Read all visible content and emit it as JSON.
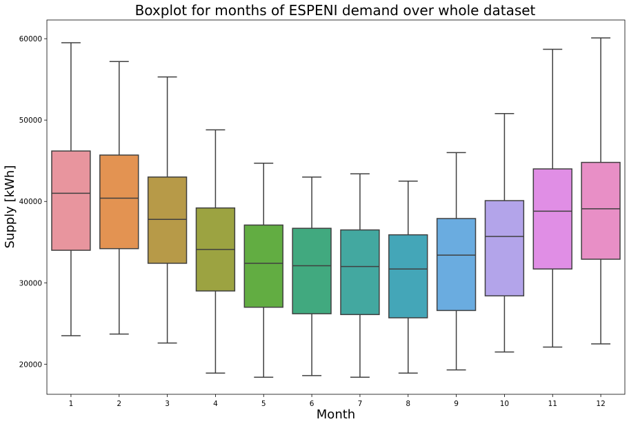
{
  "chart_data": {
    "type": "box",
    "title": "Boxplot for months of ESPENI demand over whole dataset",
    "xlabel": "Month",
    "ylabel": "Supply [kWh]",
    "ylim": [
      16300,
      62300
    ],
    "yticks": [
      20000,
      30000,
      40000,
      50000,
      60000
    ],
    "grid": false,
    "categories": [
      "1",
      "2",
      "3",
      "4",
      "5",
      "6",
      "7",
      "8",
      "9",
      "10",
      "11",
      "12"
    ],
    "boxes": [
      {
        "label": "1",
        "whislo": 23500,
        "q1": 34000,
        "med": 41000,
        "q3": 46200,
        "whishi": 59500,
        "color": "#e8959e"
      },
      {
        "label": "2",
        "whislo": 23700,
        "q1": 34200,
        "med": 40400,
        "q3": 45700,
        "whishi": 57200,
        "color": "#e39352"
      },
      {
        "label": "3",
        "whislo": 22600,
        "q1": 32400,
        "med": 37800,
        "q3": 43000,
        "whishi": 55300,
        "color": "#b79a48"
      },
      {
        "label": "4",
        "whislo": 18900,
        "q1": 29000,
        "med": 34100,
        "q3": 39200,
        "whishi": 48800,
        "color": "#9ca341"
      },
      {
        "label": "5",
        "whislo": 18400,
        "q1": 27000,
        "med": 32400,
        "q3": 37100,
        "whishi": 44700,
        "color": "#62ad42"
      },
      {
        "label": "6",
        "whislo": 18600,
        "q1": 26200,
        "med": 32100,
        "q3": 36700,
        "whishi": 43000,
        "color": "#41a97f"
      },
      {
        "label": "7",
        "whislo": 18400,
        "q1": 26100,
        "med": 32000,
        "q3": 36500,
        "whishi": 43400,
        "color": "#43a8a0"
      },
      {
        "label": "8",
        "whislo": 18900,
        "q1": 25700,
        "med": 31700,
        "q3": 35900,
        "whishi": 42500,
        "color": "#44a6b8"
      },
      {
        "label": "9",
        "whislo": 19300,
        "q1": 26600,
        "med": 33400,
        "q3": 37900,
        "whishi": 46000,
        "color": "#6aace0"
      },
      {
        "label": "10",
        "whislo": 21500,
        "q1": 28400,
        "med": 35700,
        "q3": 40100,
        "whishi": 50800,
        "color": "#b3a4ea"
      },
      {
        "label": "11",
        "whislo": 22100,
        "q1": 31700,
        "med": 38800,
        "q3": 44000,
        "whishi": 58700,
        "color": "#e08ee5"
      },
      {
        "label": "12",
        "whislo": 22500,
        "q1": 32900,
        "med": 39100,
        "q3": 44800,
        "whishi": 60100,
        "color": "#e88fc6"
      }
    ],
    "line_color": "#3f3f3f"
  }
}
